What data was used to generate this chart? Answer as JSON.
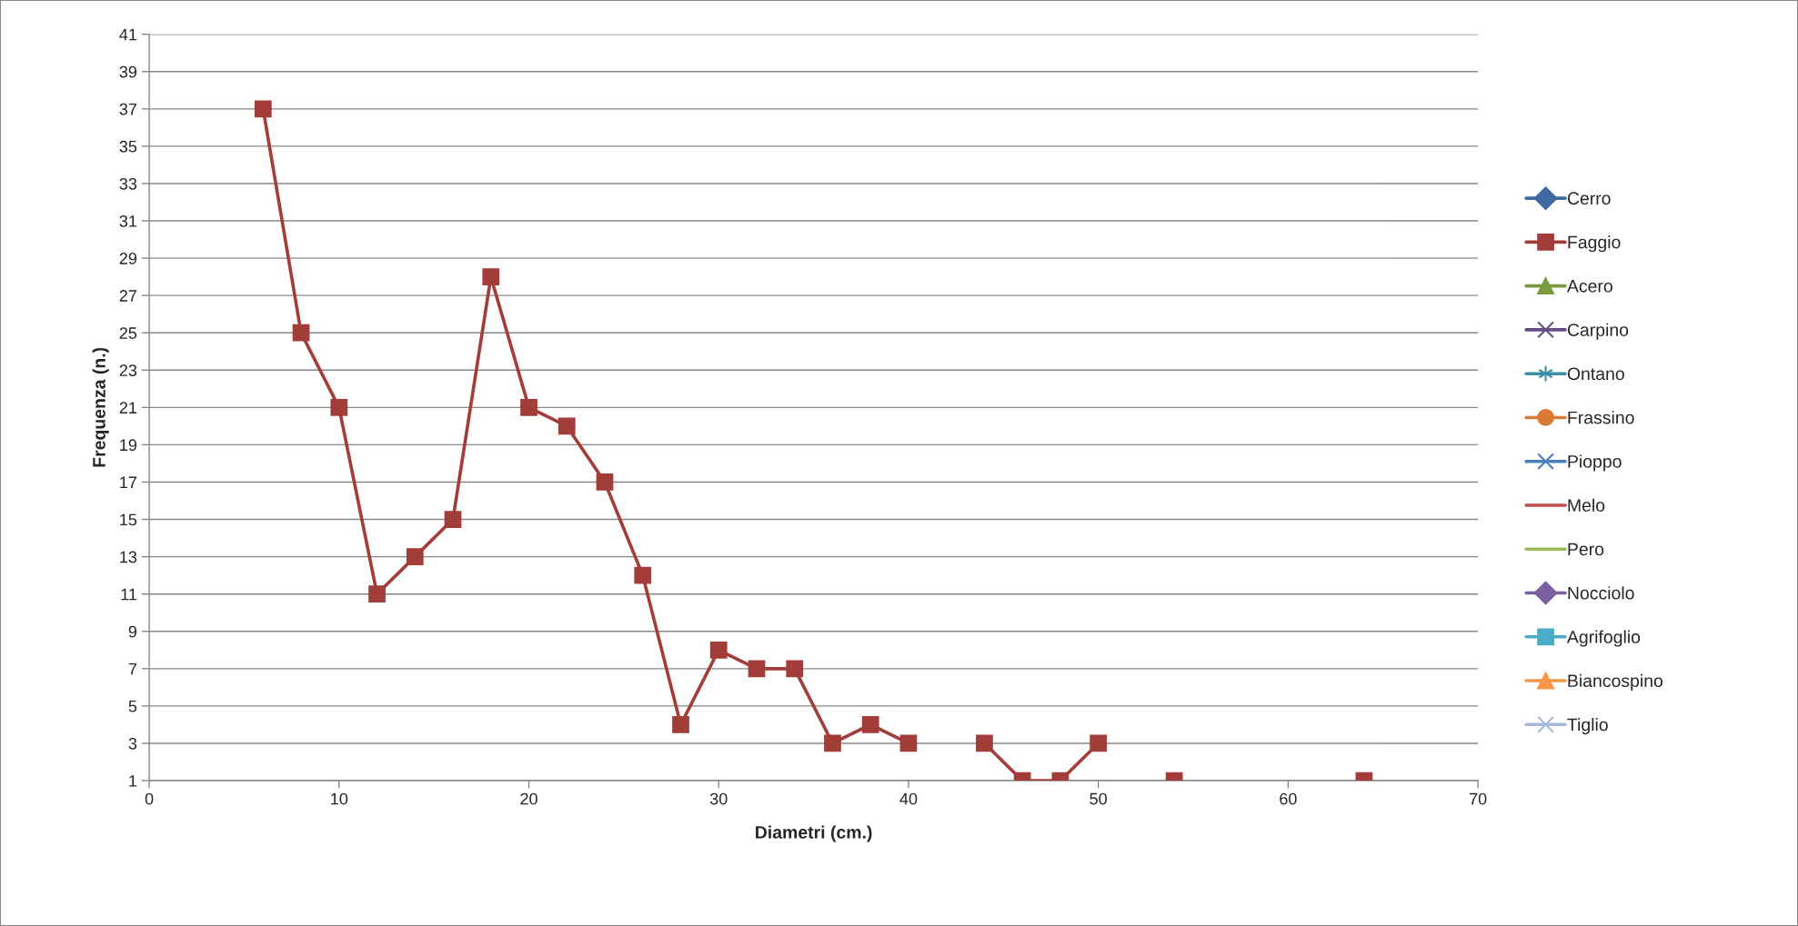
{
  "chart_data": {
    "type": "line",
    "xlabel": "Diametri (cm.)",
    "ylabel": "Frequenza (n.)",
    "x": [
      6,
      8,
      10,
      12,
      14,
      16,
      18,
      20,
      22,
      24,
      26,
      28,
      30,
      32,
      34,
      36,
      38,
      40,
      42,
      44,
      46,
      48,
      50,
      52,
      54,
      56,
      58,
      60,
      62,
      64
    ],
    "series": [
      {
        "name": "Cerro",
        "color": "#3d6aa1",
        "marker": "diamond",
        "values": [
          null,
          null,
          null,
          null,
          null,
          null,
          null,
          null,
          null,
          null,
          null,
          null,
          null,
          null,
          null,
          null,
          null,
          null,
          null,
          null,
          null,
          null,
          null,
          null,
          null,
          null,
          null,
          null,
          null,
          null
        ]
      },
      {
        "name": "Faggio",
        "color": "#a33d3a",
        "marker": "square",
        "values": [
          37,
          25,
          21,
          11,
          13,
          15,
          28,
          21,
          20,
          17,
          12,
          4,
          8,
          7,
          7,
          3,
          4,
          3,
          null,
          3,
          1,
          1,
          3,
          null,
          1,
          null,
          null,
          null,
          null,
          1
        ]
      },
      {
        "name": "Acero",
        "color": "#7a9a3f",
        "marker": "triangle",
        "values": [
          null,
          null,
          null,
          null,
          null,
          null,
          null,
          null,
          null,
          null,
          null,
          null,
          null,
          null,
          null,
          null,
          null,
          null,
          null,
          null,
          null,
          null,
          null,
          null,
          null,
          null,
          null,
          null,
          null,
          null
        ]
      },
      {
        "name": "Carpino",
        "color": "#674d87",
        "marker": "cross",
        "values": [
          null,
          null,
          null,
          null,
          null,
          null,
          null,
          null,
          null,
          null,
          null,
          null,
          null,
          null,
          null,
          null,
          null,
          null,
          null,
          null,
          null,
          null,
          null,
          null,
          null,
          null,
          null,
          null,
          null,
          null
        ]
      },
      {
        "name": "Ontano",
        "color": "#3a8fa5",
        "marker": "star",
        "values": [
          null,
          null,
          null,
          null,
          null,
          null,
          null,
          null,
          null,
          null,
          null,
          null,
          null,
          null,
          null,
          null,
          null,
          null,
          null,
          null,
          null,
          null,
          null,
          null,
          null,
          null,
          null,
          null,
          null,
          null
        ]
      },
      {
        "name": "Frassino",
        "color": "#d97a36",
        "marker": "circle",
        "values": [
          null,
          null,
          null,
          null,
          null,
          null,
          null,
          null,
          null,
          null,
          null,
          null,
          null,
          null,
          null,
          null,
          null,
          null,
          null,
          null,
          null,
          null,
          null,
          null,
          null,
          null,
          null,
          null,
          null,
          null
        ]
      },
      {
        "name": "Pioppo",
        "color": "#4a7ebb",
        "marker": "cross",
        "values": [
          null,
          null,
          null,
          null,
          null,
          null,
          null,
          null,
          null,
          null,
          null,
          null,
          null,
          null,
          null,
          null,
          null,
          null,
          null,
          null,
          null,
          null,
          null,
          null,
          null,
          null,
          null,
          null,
          null,
          null
        ]
      },
      {
        "name": "Melo",
        "color": "#be4b48",
        "marker": "none",
        "values": [
          null,
          null,
          null,
          null,
          null,
          null,
          null,
          null,
          null,
          null,
          null,
          null,
          null,
          null,
          null,
          null,
          null,
          null,
          null,
          null,
          null,
          null,
          null,
          null,
          null,
          null,
          null,
          null,
          null,
          null
        ]
      },
      {
        "name": "Pero",
        "color": "#98b954",
        "marker": "none",
        "values": [
          null,
          null,
          null,
          null,
          null,
          null,
          null,
          null,
          null,
          null,
          null,
          null,
          null,
          null,
          null,
          null,
          null,
          null,
          null,
          null,
          null,
          null,
          null,
          null,
          null,
          null,
          null,
          null,
          null,
          null
        ]
      },
      {
        "name": "Nocciolo",
        "color": "#7d60a0",
        "marker": "diamond",
        "values": [
          null,
          null,
          null,
          null,
          null,
          null,
          null,
          null,
          null,
          null,
          null,
          null,
          null,
          null,
          null,
          null,
          null,
          null,
          null,
          null,
          null,
          null,
          null,
          null,
          null,
          null,
          null,
          null,
          null,
          null
        ]
      },
      {
        "name": "Agrifoglio",
        "color": "#4bacc6",
        "marker": "square",
        "values": [
          null,
          null,
          null,
          null,
          null,
          null,
          null,
          null,
          null,
          null,
          null,
          null,
          null,
          null,
          null,
          null,
          null,
          null,
          null,
          null,
          null,
          null,
          null,
          null,
          null,
          null,
          null,
          null,
          null,
          null
        ]
      },
      {
        "name": "Biancospino",
        "color": "#f79646",
        "marker": "triangle",
        "values": [
          null,
          null,
          null,
          null,
          null,
          null,
          null,
          null,
          null,
          null,
          null,
          null,
          null,
          null,
          null,
          null,
          null,
          null,
          null,
          null,
          null,
          null,
          null,
          null,
          null,
          null,
          null,
          null,
          null,
          null
        ]
      },
      {
        "name": "Tiglio",
        "color": "#a5b9da",
        "marker": "cross",
        "values": [
          null,
          null,
          null,
          null,
          null,
          null,
          null,
          null,
          null,
          null,
          null,
          null,
          null,
          null,
          null,
          null,
          null,
          null,
          null,
          null,
          null,
          null,
          null,
          null,
          null,
          null,
          null,
          null,
          null,
          null
        ]
      }
    ],
    "xlim": [
      0,
      70
    ],
    "xticks": [
      0,
      10,
      20,
      30,
      40,
      50,
      60,
      70
    ],
    "ylim": [
      1,
      41
    ],
    "yticks": [
      1,
      3,
      5,
      7,
      9,
      11,
      13,
      15,
      17,
      19,
      21,
      23,
      25,
      27,
      29,
      31,
      33,
      35,
      37,
      39,
      41
    ],
    "grid": "y",
    "legend": "right",
    "line_style": "solid"
  }
}
